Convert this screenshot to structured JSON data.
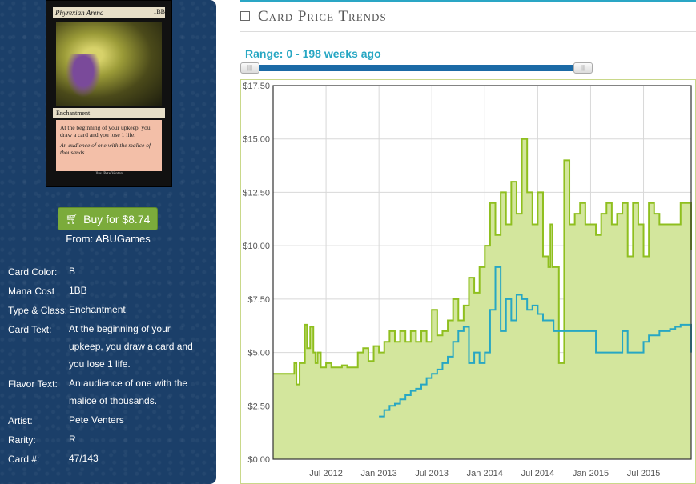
{
  "card": {
    "title": "Phyrexian Arena",
    "cost": "1BB",
    "type_line": "Enchantment",
    "rules_text": "At the beginning of your upkeep, you draw a card and you lose 1 life.",
    "flavor_text": "An audience of one with the malice of thousands.",
    "footer": "Illus. Pete Venters"
  },
  "buy": {
    "label": "Buy for $8.74",
    "icon": "shopping-cart-icon",
    "from": "From: ABUGames"
  },
  "attributes": [
    {
      "key": "Card Color:",
      "value": "B"
    },
    {
      "key": "Mana Cost",
      "value": "1BB"
    },
    {
      "key": "Type & Class:",
      "value": "Enchantment"
    },
    {
      "key": "Card Text:",
      "value": "At the beginning of your upkeep, you draw a card and you lose 1 life."
    },
    {
      "key": "Flavor Text:",
      "value": "An audience of one with the malice of thousands."
    },
    {
      "key": "Artist:",
      "value": "Pete Venters"
    },
    {
      "key": "Rarity:",
      "value": "R"
    },
    {
      "key": "Card #:",
      "value": "47/143"
    }
  ],
  "price_panel": {
    "title": "Card Price Trends",
    "icon": "calendar-icon",
    "range_label": "Range: 0 - 198 weeks ago"
  },
  "colors": {
    "sidebar": "#1b3f69",
    "accent": "#2aa6c5",
    "green_series": "#8fbf1f",
    "blue_series": "#27a7c3",
    "area_fill": "#d3e69d"
  },
  "chart_data": {
    "type": "line",
    "title": "",
    "xlabel": "",
    "ylabel": "",
    "ylim": [
      0,
      17.5
    ],
    "xlim": [
      2012.0,
      2015.95
    ],
    "y_ticks": [
      "$0.00",
      "$2.50",
      "$5.00",
      "$7.50",
      "$10.00",
      "$12.50",
      "$15.00",
      "$17.50"
    ],
    "y_tick_values": [
      0,
      2.5,
      5,
      7.5,
      10,
      12.5,
      15,
      17.5
    ],
    "x_ticks": [
      "Jul 2012",
      "Jan 2013",
      "Jul 2013",
      "Jan 2014",
      "Jul 2014",
      "Jan 2015",
      "Jul 2015"
    ],
    "x_tick_values": [
      2012.5,
      2013.0,
      2013.5,
      2014.0,
      2014.5,
      2015.0,
      2015.5
    ],
    "grid": true,
    "series": [
      {
        "name": "",
        "color": "#8fbf1f",
        "fill": true,
        "x": [
          2012.0,
          2012.2,
          2012.22,
          2012.25,
          2012.3,
          2012.32,
          2012.35,
          2012.38,
          2012.4,
          2012.42,
          2012.45,
          2012.5,
          2012.55,
          2012.6,
          2012.65,
          2012.7,
          2012.75,
          2012.8,
          2012.85,
          2012.9,
          2012.95,
          2013.0,
          2013.05,
          2013.1,
          2013.15,
          2013.2,
          2013.25,
          2013.3,
          2013.35,
          2013.4,
          2013.45,
          2013.5,
          2013.55,
          2013.6,
          2013.65,
          2013.7,
          2013.75,
          2013.8,
          2013.85,
          2013.9,
          2013.95,
          2014.0,
          2014.05,
          2014.1,
          2014.15,
          2014.2,
          2014.25,
          2014.3,
          2014.35,
          2014.4,
          2014.45,
          2014.5,
          2014.55,
          2014.6,
          2014.62,
          2014.64,
          2014.7,
          2014.75,
          2014.8,
          2014.85,
          2014.9,
          2014.95,
          2015.0,
          2015.05,
          2015.1,
          2015.15,
          2015.2,
          2015.25,
          2015.3,
          2015.35,
          2015.4,
          2015.45,
          2015.5,
          2015.55,
          2015.6,
          2015.65,
          2015.7,
          2015.75,
          2015.8,
          2015.85,
          2015.9,
          2015.95
        ],
        "values": [
          4.0,
          4.5,
          3.5,
          4.5,
          6.3,
          5.2,
          6.2,
          5.0,
          4.5,
          5.0,
          4.3,
          4.5,
          4.3,
          4.3,
          4.4,
          4.3,
          4.3,
          5.0,
          5.2,
          4.6,
          5.3,
          5.0,
          5.5,
          6.0,
          5.5,
          6.0,
          5.5,
          6.0,
          5.5,
          6.0,
          5.5,
          7.0,
          5.8,
          6.0,
          6.5,
          7.5,
          6.5,
          7.2,
          8.5,
          7.8,
          9.0,
          10.0,
          12.0,
          10.5,
          12.5,
          11.0,
          13.0,
          11.5,
          15.0,
          12.5,
          11.0,
          12.5,
          9.5,
          9.0,
          11.0,
          9.0,
          4.5,
          14.0,
          11.0,
          11.5,
          12.0,
          11.0,
          11.0,
          10.5,
          11.5,
          12.0,
          11.0,
          11.5,
          12.0,
          9.5,
          12.0,
          11.0,
          9.5,
          12.0,
          11.5,
          11.0,
          11.0,
          11.0,
          11.0,
          12.0,
          12.0,
          9.8
        ]
      },
      {
        "name": "",
        "color": "#27a7c3",
        "fill": false,
        "x": [
          2013.0,
          2013.05,
          2013.1,
          2013.15,
          2013.2,
          2013.25,
          2013.3,
          2013.35,
          2013.4,
          2013.45,
          2013.5,
          2013.55,
          2013.6,
          2013.65,
          2013.7,
          2013.75,
          2013.8,
          2013.85,
          2013.9,
          2013.95,
          2014.0,
          2014.05,
          2014.1,
          2014.15,
          2014.2,
          2014.25,
          2014.3,
          2014.35,
          2014.4,
          2014.45,
          2014.5,
          2014.55,
          2014.6,
          2014.65,
          2014.7,
          2014.75,
          2014.8,
          2014.85,
          2014.9,
          2014.95,
          2015.0,
          2015.05,
          2015.1,
          2015.15,
          2015.2,
          2015.25,
          2015.3,
          2015.35,
          2015.4,
          2015.45,
          2015.5,
          2015.55,
          2015.6,
          2015.65,
          2015.7,
          2015.75,
          2015.8,
          2015.85,
          2015.9,
          2015.95
        ],
        "values": [
          2.0,
          2.3,
          2.5,
          2.6,
          2.8,
          3.0,
          3.2,
          3.3,
          3.5,
          3.8,
          4.0,
          4.2,
          4.5,
          4.8,
          5.5,
          6.0,
          6.2,
          4.5,
          5.0,
          4.5,
          5.0,
          7.0,
          9.0,
          6.0,
          7.5,
          6.5,
          7.7,
          7.5,
          7.0,
          7.2,
          6.8,
          6.5,
          6.5,
          6.0,
          6.0,
          6.0,
          6.0,
          6.0,
          6.0,
          6.0,
          6.0,
          5.0,
          5.0,
          5.0,
          5.0,
          5.0,
          6.0,
          5.0,
          5.0,
          5.0,
          5.5,
          5.8,
          5.8,
          6.0,
          6.0,
          6.1,
          6.2,
          6.3,
          6.3,
          5.0
        ]
      }
    ]
  }
}
